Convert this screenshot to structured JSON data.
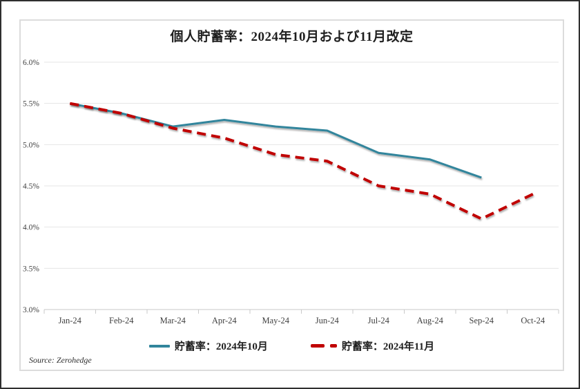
{
  "title": "個人貯蓄率：2024年10月および11月改定",
  "source": "Source: Zerohedge",
  "colors": {
    "october_line": "#31859C",
    "november_line": "#C00000",
    "gridline": "#e4e4e4",
    "axis": "#c9c9c9",
    "title_text": "#1f1f1f",
    "tick_text": "#3f3f3f",
    "outer_border": "#2f2f2f",
    "frame_border": "#dcdcdc"
  },
  "legend": {
    "items": [
      {
        "id": "october",
        "label": "貯蓄率：2024年10月",
        "style": "solid"
      },
      {
        "id": "november",
        "label": "貯蓄率：2024年11月",
        "style": "dashed"
      }
    ]
  },
  "chart_data": {
    "type": "line",
    "title": "個人貯蓄率：2024年10月および11月改定",
    "categories": [
      "Jan-24",
      "Feb-24",
      "Mar-24",
      "Apr-24",
      "May-24",
      "Jun-24",
      "Jul-24",
      "Aug-24",
      "Sep-24",
      "Oct-24"
    ],
    "series": [
      {
        "name": "貯蓄率：2024年10月",
        "id": "october-2024-revision",
        "color": "#31859C",
        "style": "solid",
        "values": [
          5.5,
          5.38,
          5.22,
          5.3,
          5.22,
          5.17,
          4.9,
          4.82,
          4.6,
          null
        ]
      },
      {
        "name": "貯蓄率：2024年11月",
        "id": "november-2024-revision",
        "color": "#C00000",
        "style": "dashed",
        "values": [
          5.5,
          5.38,
          5.2,
          5.08,
          4.88,
          4.8,
          4.5,
          4.4,
          4.1,
          4.4
        ]
      }
    ],
    "ylabel": "",
    "xlabel": "",
    "ylim": [
      3.0,
      6.0
    ],
    "ytick_step": 0.5,
    "ytick_labels": [
      "3.0%",
      "3.5%",
      "4.0%",
      "4.5%",
      "5.0%",
      "5.5%",
      "6.0%"
    ],
    "grid": true,
    "legend_position": "bottom"
  }
}
